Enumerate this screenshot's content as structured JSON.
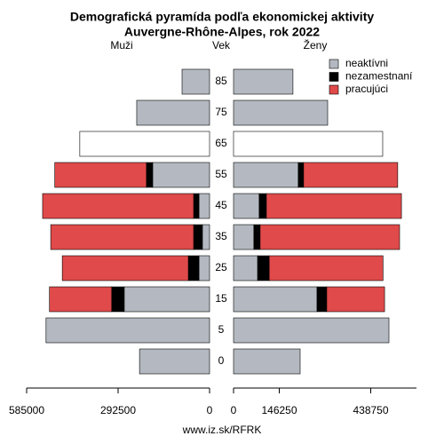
{
  "chart_data": {
    "type": "pyramid",
    "title": [
      "Demografická pyramída podľa ekonomickej aktivity",
      "Auvergne-Rhône-Alpes, rok 2022"
    ],
    "left_label": "Muži",
    "center_label": "Vek",
    "right_label": "Ženy",
    "source": "www.iz.sk/RFRK",
    "categories": [
      0,
      5,
      15,
      25,
      35,
      45,
      55,
      65,
      75,
      85
    ],
    "xlim_male": [
      0,
      585000
    ],
    "xticks_male": [
      0,
      292500,
      585000
    ],
    "xlim_female": [
      0,
      585000
    ],
    "xticks_female": [
      0,
      146250,
      438750
    ],
    "series": [
      {
        "name": "neaktívni",
        "color": "#b4b9c1",
        "male": [
          224000,
          523000,
          273000,
          34000,
          23000,
          34000,
          182000,
          415000,
          233000,
          88000
        ],
        "female": [
          213000,
          497000,
          267000,
          77000,
          65000,
          82000,
          207000,
          477000,
          301000,
          190000
        ],
        "male_colors": [
          "#b4b9c1",
          "#b4b9c1",
          "#b4b9c1",
          "#b4b9c1",
          "#b4b9c1",
          "#b4b9c1",
          "#b4b9c1",
          "#ffffff",
          "#b4b9c1",
          "#b4b9c1"
        ],
        "female_colors": [
          "#b4b9c1",
          "#b4b9c1",
          "#b4b9c1",
          "#b4b9c1",
          "#b4b9c1",
          "#b4b9c1",
          "#b4b9c1",
          "#ffffff",
          "#b4b9c1",
          "#b4b9c1"
        ]
      },
      {
        "name": "nezamestnaní",
        "color": "#000000",
        "male": [
          null,
          null,
          40000,
          34000,
          28000,
          17000,
          20000,
          null,
          null,
          null
        ],
        "female": [
          null,
          null,
          31000,
          37000,
          20000,
          23000,
          17000,
          null,
          null,
          null
        ]
      },
      {
        "name": "pracujúci",
        "color": "#e04a4a",
        "male": [
          null,
          null,
          199000,
          403000,
          457000,
          483000,
          293000,
          null,
          null,
          null
        ],
        "female": [
          null,
          null,
          185000,
          364000,
          446000,
          432000,
          301000,
          null,
          null,
          null
        ]
      }
    ]
  }
}
